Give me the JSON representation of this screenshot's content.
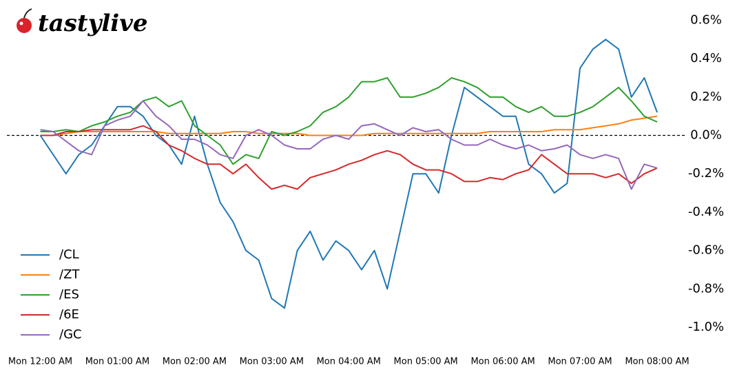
{
  "logo": "tastylive",
  "chart_data": {
    "type": "line",
    "x": [
      0,
      10,
      20,
      30,
      40,
      50,
      60,
      70,
      80,
      90,
      100,
      110,
      120,
      130,
      140,
      150,
      160,
      170,
      180,
      190,
      200,
      210,
      220,
      230,
      240,
      250,
      260,
      270,
      280,
      290,
      300,
      310,
      320,
      330,
      340,
      350,
      360,
      370,
      380,
      390,
      400,
      410,
      420,
      430,
      440,
      450,
      460,
      470,
      480
    ],
    "xlim": [
      -26,
      502
    ],
    "xticks": [
      {
        "value": 0,
        "label": "Mon 12:00 AM"
      },
      {
        "value": 60,
        "label": "Mon 01:00 AM"
      },
      {
        "value": 120,
        "label": "Mon 02:00 AM"
      },
      {
        "value": 180,
        "label": "Mon 03:00 AM"
      },
      {
        "value": 240,
        "label": "Mon 04:00 AM"
      },
      {
        "value": 300,
        "label": "Mon 05:00 AM"
      },
      {
        "value": 360,
        "label": "Mon 06:00 AM"
      },
      {
        "value": 420,
        "label": "Mon 07:00 AM"
      },
      {
        "value": 480,
        "label": "Mon 08:00 AM"
      }
    ],
    "ylim": [
      -1.09,
      0.67
    ],
    "yticks": [
      {
        "value": 0.6,
        "label": "0.6%"
      },
      {
        "value": 0.4,
        "label": "0.4%"
      },
      {
        "value": 0.2,
        "label": "0.2%"
      },
      {
        "value": 0.0,
        "label": "0.0%"
      },
      {
        "value": -0.2,
        "label": "-0.2%"
      },
      {
        "value": -0.4,
        "label": "-0.4%"
      },
      {
        "value": -0.6,
        "label": "-0.6%"
      },
      {
        "value": -0.8,
        "label": "-0.8%"
      },
      {
        "value": -1.0,
        "label": "-1.0%"
      }
    ],
    "y_axis_side": "right",
    "hline": 0,
    "legend": "lower left",
    "series": [
      {
        "name": "/CL",
        "color": "#1f77b4",
        "values": [
          0.0,
          -0.1,
          -0.2,
          -0.1,
          -0.05,
          0.05,
          0.15,
          0.15,
          0.1,
          0.0,
          -0.05,
          -0.15,
          0.1,
          -0.15,
          -0.35,
          -0.45,
          -0.6,
          -0.65,
          -0.85,
          -0.9,
          -0.6,
          -0.5,
          -0.65,
          -0.55,
          -0.6,
          -0.7,
          -0.6,
          -0.8,
          -0.5,
          -0.2,
          -0.2,
          -0.3,
          0.0,
          0.25,
          0.2,
          0.15,
          0.1,
          0.1,
          -0.15,
          -0.2,
          -0.3,
          -0.25,
          0.35,
          0.45,
          0.5,
          0.45,
          0.2,
          0.3,
          0.12
        ]
      },
      {
        "name": "/ZT",
        "color": "#ff7f0e",
        "values": [
          0.0,
          0.0,
          0.01,
          0.02,
          0.02,
          0.02,
          0.02,
          0.02,
          0.02,
          0.02,
          0.01,
          0.01,
          0.01,
          0.01,
          0.01,
          0.02,
          0.02,
          0.01,
          0.01,
          0.01,
          0.01,
          0.0,
          0.0,
          0.0,
          0.0,
          0.0,
          0.01,
          0.01,
          0.01,
          0.01,
          0.01,
          0.01,
          0.01,
          0.01,
          0.01,
          0.02,
          0.02,
          0.02,
          0.02,
          0.02,
          0.03,
          0.03,
          0.03,
          0.04,
          0.05,
          0.06,
          0.08,
          0.09,
          0.1
        ]
      },
      {
        "name": "/ES",
        "color": "#2ca02c",
        "values": [
          0.02,
          0.02,
          0.03,
          0.02,
          0.05,
          0.07,
          0.1,
          0.12,
          0.18,
          0.2,
          0.15,
          0.18,
          0.05,
          0.0,
          -0.05,
          -0.15,
          -0.1,
          -0.12,
          0.02,
          0.0,
          0.02,
          0.05,
          0.12,
          0.15,
          0.2,
          0.28,
          0.28,
          0.3,
          0.2,
          0.2,
          0.22,
          0.25,
          0.3,
          0.28,
          0.25,
          0.2,
          0.2,
          0.15,
          0.12,
          0.15,
          0.1,
          0.1,
          0.12,
          0.15,
          0.2,
          0.25,
          0.18,
          0.1,
          0.07
        ]
      },
      {
        "name": "/6E",
        "color": "#d62728",
        "values": [
          0.0,
          0.0,
          0.02,
          0.02,
          0.03,
          0.03,
          0.03,
          0.03,
          0.05,
          0.02,
          -0.05,
          -0.08,
          -0.12,
          -0.15,
          -0.15,
          -0.2,
          -0.15,
          -0.22,
          -0.28,
          -0.26,
          -0.28,
          -0.22,
          -0.2,
          -0.18,
          -0.15,
          -0.13,
          -0.1,
          -0.08,
          -0.1,
          -0.15,
          -0.18,
          -0.18,
          -0.2,
          -0.24,
          -0.24,
          -0.22,
          -0.23,
          -0.2,
          -0.18,
          -0.1,
          -0.15,
          -0.2,
          -0.2,
          -0.2,
          -0.22,
          -0.2,
          -0.25,
          -0.2,
          -0.17
        ]
      },
      {
        "name": "/GC",
        "color": "#9467bd",
        "values": [
          0.03,
          0.02,
          -0.03,
          -0.08,
          -0.1,
          0.05,
          0.08,
          0.1,
          0.18,
          0.1,
          0.05,
          -0.02,
          -0.02,
          -0.05,
          -0.1,
          -0.12,
          0.0,
          0.03,
          0.0,
          -0.05,
          -0.07,
          -0.07,
          -0.02,
          0.0,
          -0.02,
          0.05,
          0.06,
          0.03,
          0.0,
          0.04,
          0.02,
          0.03,
          -0.02,
          -0.05,
          -0.05,
          -0.02,
          -0.05,
          -0.07,
          -0.05,
          -0.08,
          -0.07,
          -0.05,
          -0.1,
          -0.12,
          -0.1,
          -0.12,
          -0.28,
          -0.15,
          -0.17
        ]
      }
    ]
  }
}
